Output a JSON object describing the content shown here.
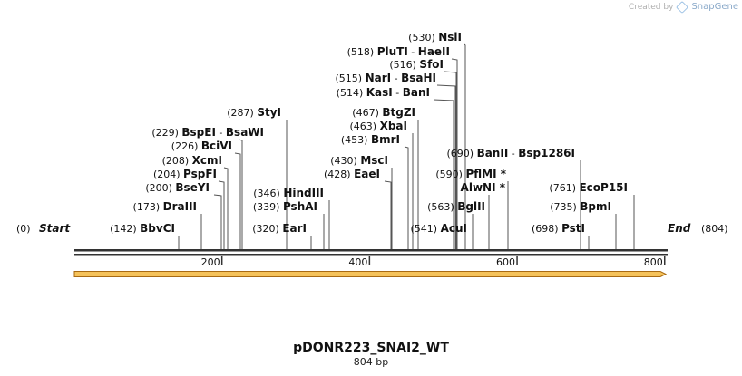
{
  "brand": {
    "created_by": "Created by",
    "product": "SnapGene"
  },
  "map": {
    "length": 804,
    "start_label": "Start",
    "start_pos": "(0)",
    "end_label": "End",
    "end_pos": "(804)",
    "ticks": [
      "200",
      "400",
      "600",
      "800"
    ],
    "colors": {
      "line": "#333333",
      "feature_fill": "#f5c25a",
      "feature_edge": "#a86a12",
      "text": "#111111"
    }
  },
  "sites": [
    {
      "pos": "(142)",
      "name": "BbvCI"
    },
    {
      "pos": "(173)",
      "name": "DraIII"
    },
    {
      "pos": "(200)",
      "name": "BseYI"
    },
    {
      "pos": "(204)",
      "name": "PspFI"
    },
    {
      "pos": "(208)",
      "name": "XcmI"
    },
    {
      "pos": "(226)",
      "name": "BciVI"
    },
    {
      "pos": "(229)",
      "name": "BspEI",
      "name2": "BsaWI"
    },
    {
      "pos": "(287)",
      "name": "StyI"
    },
    {
      "pos": "(320)",
      "name": "EarI"
    },
    {
      "pos": "(339)",
      "name": "PshAI"
    },
    {
      "pos": "(346)",
      "name": "HindIII"
    },
    {
      "pos": "(428)",
      "name": "EaeI"
    },
    {
      "pos": "(430)",
      "name": "MscI"
    },
    {
      "pos": "(453)",
      "name": "BmrI"
    },
    {
      "pos": "(463)",
      "name": "XbaI"
    },
    {
      "pos": "(467)",
      "name": "BtgZI"
    },
    {
      "pos": "(514)",
      "name": "KasI",
      "name2": "BanI"
    },
    {
      "pos": "(515)",
      "name": "NarI",
      "name2": "BsaHI"
    },
    {
      "pos": "(516)",
      "name": "SfoI"
    },
    {
      "pos": "(518)",
      "name": "PluTI",
      "name2": "HaeII"
    },
    {
      "pos": "(530)",
      "name": "NsiI"
    },
    {
      "pos": "(541)",
      "name": "AcuI"
    },
    {
      "pos": "(563)",
      "name": "BglII"
    },
    {
      "pos": "",
      "name": "AlwNI *"
    },
    {
      "pos": "(590)",
      "name": "PflMI *"
    },
    {
      "pos": "(690)",
      "name": "BanII",
      "name2": "Bsp1286I"
    },
    {
      "pos": "(698)",
      "name": "PstI"
    },
    {
      "pos": "(735)",
      "name": "BpmI"
    },
    {
      "pos": "(761)",
      "name": "EcoP15I"
    }
  ],
  "title": "pDONR223_SNAI2_WT",
  "subtitle": "804 bp"
}
